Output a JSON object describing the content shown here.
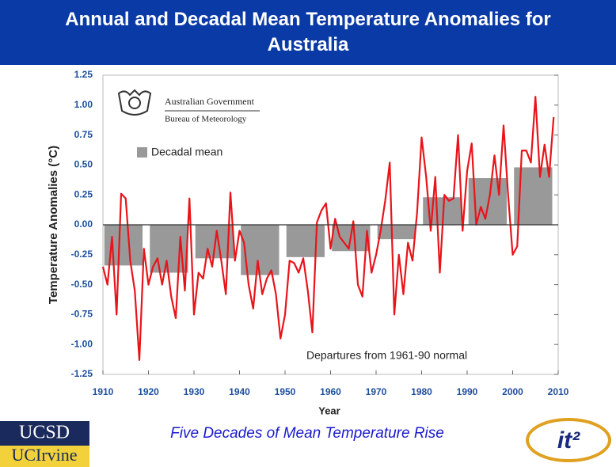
{
  "title": "Annual and Decadal Mean Temperature Anomalies for Australia",
  "caption": "Five Decades of Mean Temperature Rise",
  "logos": [
    "UCSD",
    "UCIrvine",
    "it²"
  ],
  "chart_data": {
    "type": "bar",
    "logo_texts": [
      "Australian Government",
      "Bureau of Meteorology"
    ],
    "y_label": "Temperature Anomalies (°C)",
    "x_label": "Year",
    "annotation": "Departures from 1961-90 normal",
    "xlim": [
      1910,
      2010
    ],
    "xticks": [
      1910,
      1920,
      1930,
      1940,
      1950,
      1960,
      1970,
      1980,
      1990,
      2000,
      2010
    ],
    "ylim": [
      -1.25,
      1.25
    ],
    "yticks": [
      -1.25,
      {
        "value": -1,
        "label": "-1.00"
      },
      -0.75,
      {
        "value": -0.5,
        "label": "-0.50"
      },
      -0.25,
      {
        "value": 0,
        "label": "0.00"
      },
      0.25,
      {
        "value": 0.5,
        "label": "0.50"
      },
      0.75,
      {
        "value": 1,
        "label": "1.00"
      },
      1.25
    ],
    "series": [
      {
        "name": "Decadal mean",
        "type": "bar",
        "color": "#999999",
        "x": [
          1910,
          1920,
          1930,
          1940,
          1950,
          1960,
          1970,
          1980,
          1990,
          2000
        ],
        "values": [
          -0.34,
          -0.4,
          -0.28,
          -0.42,
          -0.27,
          -0.22,
          -0.12,
          0.23,
          0.39,
          0.48
        ]
      },
      {
        "type": "line",
        "color": "#e8141a",
        "x": [
          1910,
          1911,
          1912,
          1913,
          1914,
          1915,
          1916,
          1917,
          1918,
          1919,
          1920,
          1921,
          1922,
          1923,
          1924,
          1925,
          1926,
          1927,
          1928,
          1929,
          1930,
          1931,
          1932,
          1933,
          1934,
          1935,
          1936,
          1937,
          1938,
          1939,
          1940,
          1941,
          1942,
          1943,
          1944,
          1945,
          1946,
          1947,
          1948,
          1949,
          1950,
          1951,
          1952,
          1953,
          1954,
          1955,
          1956,
          1957,
          1958,
          1959,
          1960,
          1961,
          1962,
          1963,
          1964,
          1965,
          1966,
          1967,
          1968,
          1969,
          1970,
          1971,
          1972,
          1973,
          1974,
          1975,
          1976,
          1977,
          1978,
          1979,
          1980,
          1981,
          1982,
          1983,
          1984,
          1985,
          1986,
          1987,
          1988,
          1989,
          1990,
          1991,
          1992,
          1993,
          1994,
          1995,
          1996,
          1997,
          1998,
          1999,
          2000,
          2001,
          2002,
          2003,
          2004,
          2005,
          2006,
          2007,
          2008,
          2009
        ],
        "values": [
          -0.35,
          -0.5,
          -0.1,
          -0.75,
          0.26,
          0.22,
          -0.3,
          -0.55,
          -1.13,
          -0.2,
          -0.5,
          -0.35,
          -0.28,
          -0.5,
          -0.3,
          -0.6,
          -0.78,
          -0.1,
          -0.55,
          0.22,
          -0.75,
          -0.4,
          -0.45,
          -0.2,
          -0.35,
          -0.05,
          -0.3,
          -0.58,
          0.27,
          -0.3,
          -0.05,
          -0.15,
          -0.5,
          -0.7,
          -0.3,
          -0.58,
          -0.45,
          -0.38,
          -0.58,
          -0.95,
          -0.75,
          -0.3,
          -0.32,
          -0.4,
          -0.28,
          -0.55,
          -0.9,
          0.02,
          0.12,
          0.18,
          -0.2,
          0.05,
          -0.1,
          -0.15,
          -0.2,
          0.03,
          -0.5,
          -0.6,
          -0.05,
          -0.4,
          -0.25,
          -0.05,
          0.2,
          0.52,
          -0.75,
          -0.25,
          -0.58,
          -0.15,
          -0.3,
          0.1,
          0.73,
          0.4,
          -0.05,
          0.4,
          -0.4,
          0.25,
          0.2,
          0.22,
          0.75,
          -0.05,
          0.45,
          0.68,
          0.0,
          0.15,
          0.05,
          0.25,
          0.58,
          0.25,
          0.83,
          0.25,
          -0.25,
          -0.18,
          0.62,
          0.62,
          0.52,
          1.07,
          0.4,
          0.67,
          0.4,
          0.9
        ]
      }
    ]
  }
}
